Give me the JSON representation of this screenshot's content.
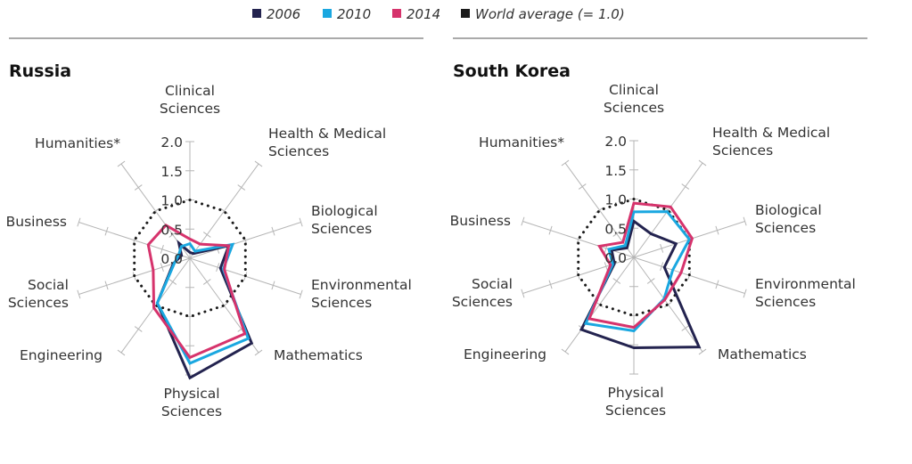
{
  "chart_data": {
    "type": "radar",
    "legend": {
      "placement": "top-center",
      "entries": [
        {
          "label": "2006",
          "color": "#23234f"
        },
        {
          "label": "2010",
          "color": "#1aa7e0"
        },
        {
          "label": "2014",
          "color": "#d6336c"
        },
        {
          "label": "World average (= 1.0)",
          "color": "#1a1a1a"
        }
      ]
    },
    "axes": [
      "Clinical Sciences",
      "Health & Medical Sciences",
      "Biological Sciences",
      "Environmental Sciences",
      "Mathematics",
      "Physical Sciences",
      "Engineering",
      "Social Sciences",
      "Business",
      "Humanities*"
    ],
    "tick_labels": [
      "0.0",
      "0.5",
      "1.0",
      "1.5",
      "2.0"
    ],
    "rlim": [
      0,
      2.0
    ],
    "reference_value": 1.0,
    "charts": [
      {
        "title": "Russia",
        "series": [
          {
            "name": "2006",
            "values": [
              0.1,
              0.1,
              0.7,
              0.55,
              1.8,
              2.05,
              0.95,
              0.3,
              0.15,
              0.32
            ]
          },
          {
            "name": "2010",
            "values": [
              0.25,
              0.15,
              0.77,
              0.6,
              1.7,
              1.8,
              0.95,
              0.28,
              0.2,
              0.25
            ]
          },
          {
            "name": "2014",
            "values": [
              0.33,
              0.3,
              0.7,
              0.62,
              1.6,
              1.7,
              1.05,
              0.66,
              0.75,
              0.7
            ]
          }
        ]
      },
      {
        "title": "South Korea",
        "series": [
          {
            "name": "2006",
            "values": [
              0.62,
              0.5,
              0.76,
              0.55,
              1.9,
              1.55,
              1.53,
              0.35,
              0.4,
              0.2
            ]
          },
          {
            "name": "2010",
            "values": [
              0.78,
              0.97,
              1.0,
              0.7,
              0.88,
              1.26,
              1.4,
              0.38,
              0.45,
              0.25
            ]
          },
          {
            "name": "2014",
            "values": [
              0.93,
              1.07,
              1.05,
              0.85,
              0.9,
              1.2,
              1.3,
              0.42,
              0.62,
              0.32
            ]
          }
        ]
      }
    ]
  }
}
